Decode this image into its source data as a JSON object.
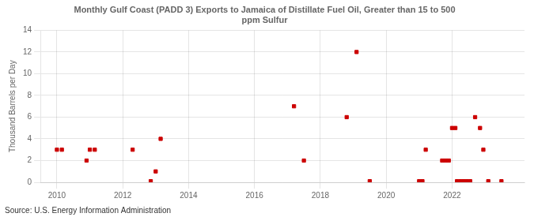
{
  "chart_data": {
    "type": "scatter",
    "title": "Monthly Gulf Coast (PADD 3) Exports to Jamaica of Distillate Fuel Oil, Greater than 15 to 500\nppm Sulfur",
    "ylabel": "Thousand Barrels per Day",
    "source": "Source: U.S. Energy Information Administration",
    "color": "#cc0000",
    "marker": "square",
    "grid": true,
    "xlim": [
      2009.5,
      2024.2
    ],
    "ylim": [
      0,
      14
    ],
    "xticks": [
      2010,
      2012,
      2014,
      2016,
      2018,
      2020,
      2022
    ],
    "yticks": [
      0,
      2,
      4,
      6,
      8,
      10,
      12,
      14
    ],
    "x": [
      2010.0,
      2010.15,
      2010.9,
      2011.0,
      2011.15,
      2012.3,
      2012.85,
      2013.0,
      2013.15,
      2017.2,
      2017.5,
      2018.8,
      2019.1,
      2019.5,
      2021.0,
      2021.1,
      2021.2,
      2021.7,
      2021.8,
      2021.9,
      2022.0,
      2022.1,
      2022.15,
      2022.25,
      2022.35,
      2022.45,
      2022.55,
      2022.7,
      2022.85,
      2022.95,
      2023.1,
      2023.5
    ],
    "values": [
      3.0,
      3.0,
      2.0,
      3.0,
      3.0,
      3.0,
      0.1,
      1.0,
      4.0,
      7.0,
      2.0,
      6.0,
      12.0,
      0.1,
      0.1,
      0.1,
      3.0,
      2.0,
      2.0,
      2.0,
      5.0,
      5.0,
      0.1,
      0.1,
      0.1,
      0.1,
      0.1,
      6.0,
      5.0,
      3.0,
      0.1,
      0.1
    ]
  }
}
